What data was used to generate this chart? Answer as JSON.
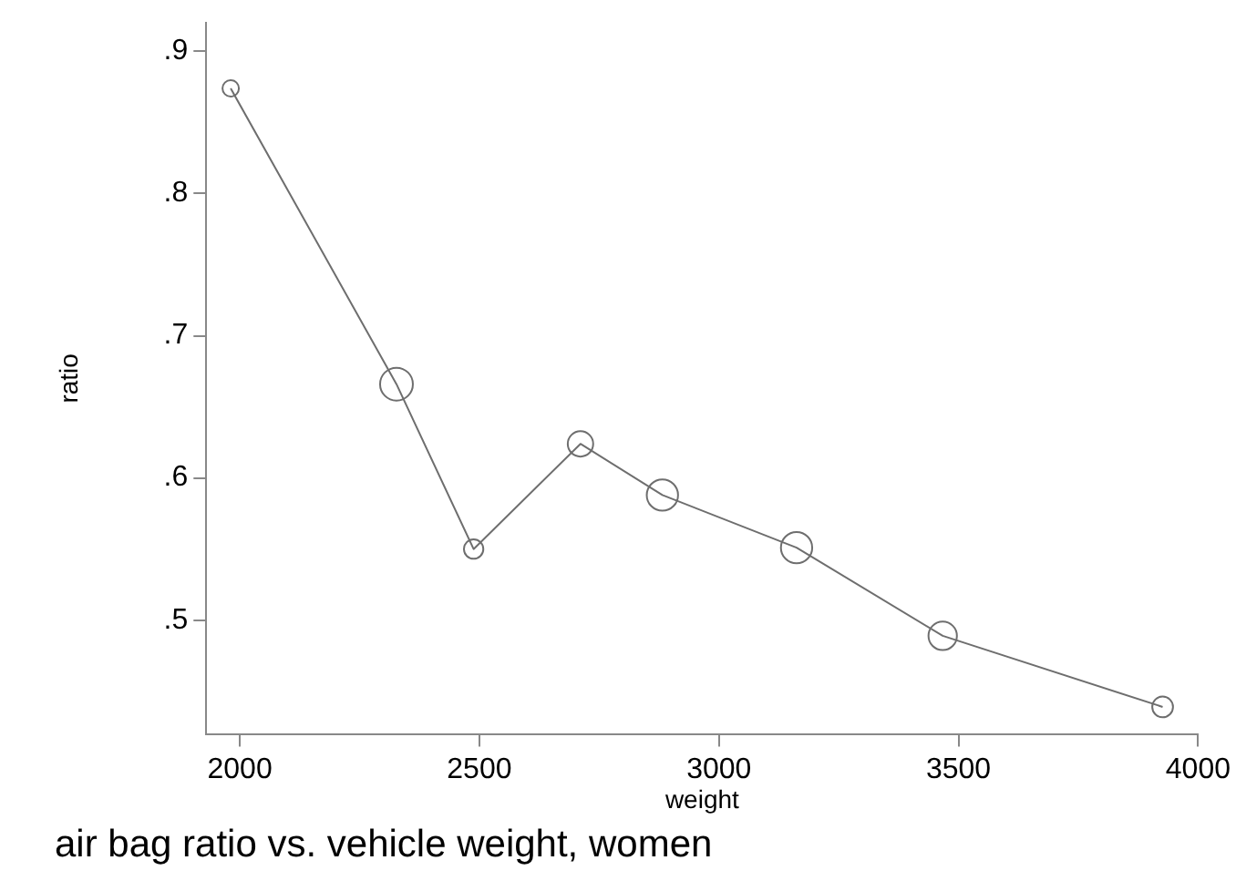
{
  "chart_data": {
    "type": "bubble",
    "title": "air bag ratio vs. vehicle weight, women",
    "xlabel": "weight",
    "ylabel": "ratio",
    "xlim": [
      1930,
      4000
    ],
    "ylim": [
      0.42,
      0.92
    ],
    "xticks": [
      2000,
      2500,
      3000,
      3500,
      4000
    ],
    "yticks": [
      {
        "value": 0.5,
        "label": ".5"
      },
      {
        "value": 0.6,
        "label": ".6"
      },
      {
        "value": 0.7,
        "label": ".7"
      },
      {
        "value": 0.8,
        "label": ".8"
      },
      {
        "value": 0.9,
        "label": ".9"
      }
    ],
    "grid": false,
    "legend": false,
    "series": [
      {
        "type": "line",
        "color": "#6e6e6e",
        "marker": "none",
        "line_style": "solid",
        "x": [
          1981,
          2327,
          2488,
          2711,
          2882,
          3162,
          3467,
          3926
        ],
        "values": [
          0.874,
          0.666,
          0.55,
          0.624,
          0.588,
          0.551,
          0.489,
          0.439
        ]
      },
      {
        "color": "#6e6e6e",
        "x": [
          1981,
          2327,
          2488,
          2711,
          2882,
          3162,
          3467,
          3926
        ],
        "values": [
          0.874,
          0.666,
          0.55,
          0.624,
          0.588,
          0.551,
          0.489,
          0.439
        ],
        "sizes": [
          0.25,
          1,
          0.35,
          0.6,
          0.91,
          0.91,
          0.75,
          0.4
        ]
      }
    ]
  }
}
